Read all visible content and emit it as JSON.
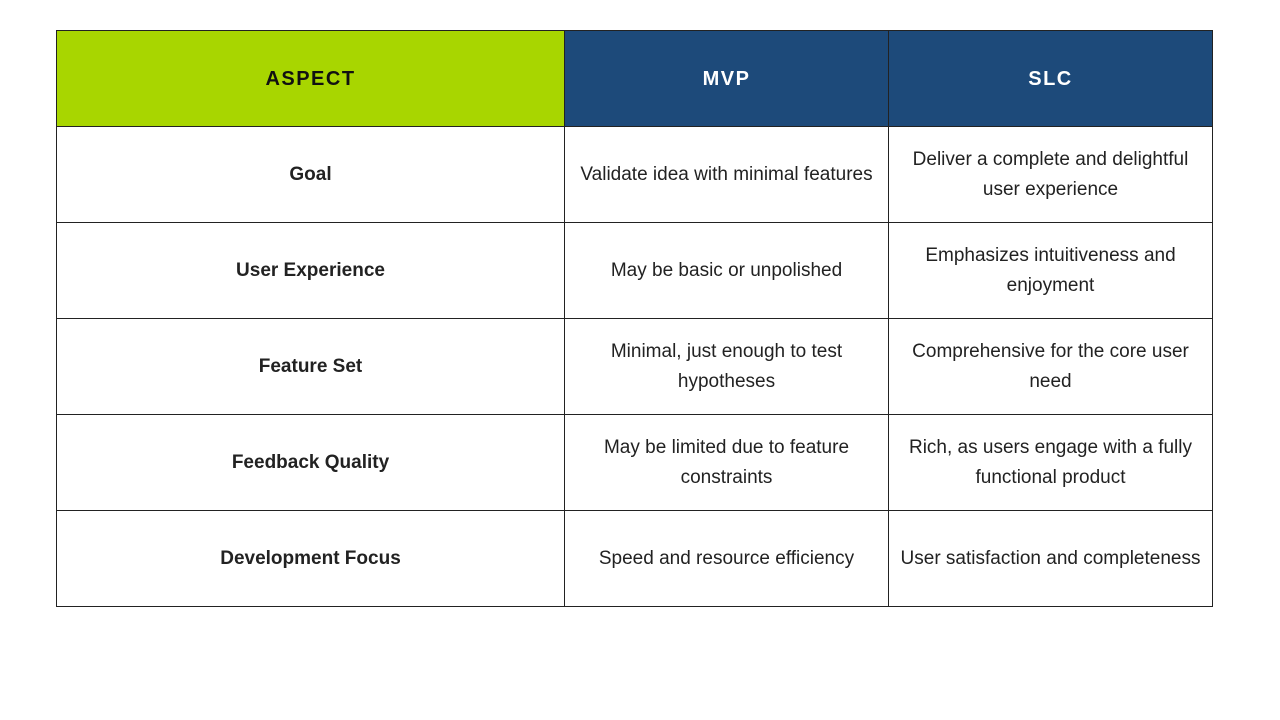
{
  "table": {
    "header": [
      "ASPECT",
      "MVP",
      "SLC"
    ],
    "rows": [
      [
        "Goal",
        "Validate idea with minimal features",
        "Deliver a complete and delightful user experience"
      ],
      [
        "User Experience",
        "May be basic or unpolished",
        "Emphasizes intuitiveness and enjoyment"
      ],
      [
        "Feature Set",
        "Minimal, just enough to test hypotheses",
        "Comprehensive for the core user need"
      ],
      [
        "Feedback Quality",
        "May be limited due to feature constraints",
        "Rich, as users engage with a fully functional product"
      ],
      [
        "Development Focus",
        "Speed and resource efficiency",
        "User satisfaction and completeness"
      ]
    ]
  }
}
